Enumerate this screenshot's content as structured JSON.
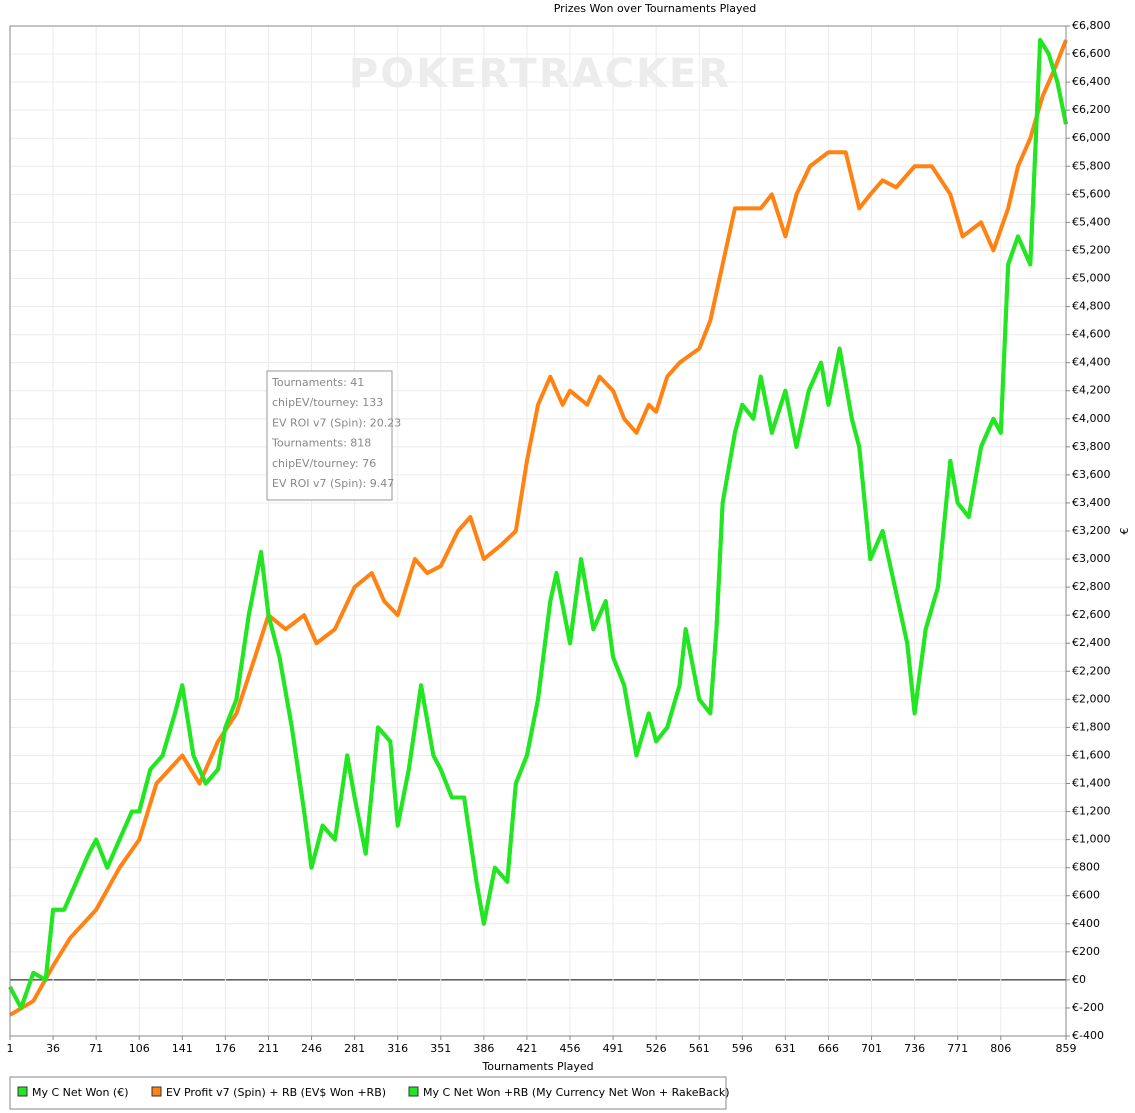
{
  "chart_data": {
    "type": "line",
    "title": "Prizes Won over Tournaments Played",
    "xlabel": "Tournaments Played",
    "ylabel": "€",
    "watermark": "POKERTRACKER",
    "annotations": [
      "Tournaments: 41",
      "chipEV/tourney: 133",
      "EV ROI v7 (Spin): 20.23",
      "Tournaments: 818",
      "chipEV/tourney: 76",
      "EV ROI v7 (Spin): 9.47"
    ],
    "xlim": [
      1,
      859
    ],
    "xticks": [
      1,
      36,
      71,
      106,
      141,
      176,
      211,
      246,
      281,
      316,
      351,
      386,
      421,
      456,
      491,
      526,
      561,
      596,
      631,
      666,
      701,
      736,
      771,
      806,
      859
    ],
    "ylim": [
      -400,
      6800
    ],
    "yticks": [
      {
        "value": -400,
        "label": "€-400"
      },
      {
        "value": -200,
        "label": "€-200"
      },
      {
        "value": 0,
        "label": "€0"
      },
      {
        "value": 200,
        "label": "€200"
      },
      {
        "value": 400,
        "label": "€400"
      },
      {
        "value": 600,
        "label": "€600"
      },
      {
        "value": 800,
        "label": "€800"
      },
      {
        "value": 1000,
        "label": "€1,000"
      },
      {
        "value": 1200,
        "label": "€1,200"
      },
      {
        "value": 1400,
        "label": "€1,400"
      },
      {
        "value": 1600,
        "label": "€1,600"
      },
      {
        "value": 1800,
        "label": "€1,800"
      },
      {
        "value": 2000,
        "label": "€2,000"
      },
      {
        "value": 2200,
        "label": "€2,200"
      },
      {
        "value": 2400,
        "label": "€2,400"
      },
      {
        "value": 2600,
        "label": "€2,600"
      },
      {
        "value": 2800,
        "label": "€2,800"
      },
      {
        "value": 3000,
        "label": "€3,000"
      },
      {
        "value": 3200,
        "label": "€3,200"
      },
      {
        "value": 3400,
        "label": "€3,400"
      },
      {
        "value": 3600,
        "label": "€3,600"
      },
      {
        "value": 3800,
        "label": "€3,800"
      },
      {
        "value": 4000,
        "label": "€4,000"
      },
      {
        "value": 4200,
        "label": "€4,200"
      },
      {
        "value": 4400,
        "label": "€4,400"
      },
      {
        "value": 4600,
        "label": "€4,600"
      },
      {
        "value": 4800,
        "label": "€4,800"
      },
      {
        "value": 5000,
        "label": "€5,000"
      },
      {
        "value": 5200,
        "label": "€5,200"
      },
      {
        "value": 5400,
        "label": "€5,400"
      },
      {
        "value": 5600,
        "label": "€5,600"
      },
      {
        "value": 5800,
        "label": "€5,800"
      },
      {
        "value": 6000,
        "label": "€6,000"
      },
      {
        "value": 6200,
        "label": "€6,200"
      },
      {
        "value": 6400,
        "label": "€6,400"
      },
      {
        "value": 6600,
        "label": "€6,600"
      },
      {
        "value": 6800,
        "label": "€6,800"
      }
    ],
    "grid": true,
    "series": [
      {
        "name": "My C Net Won (€)",
        "color": "#22e622",
        "x": [
          1,
          10,
          20,
          30,
          36,
          45,
          55,
          65,
          71,
          80,
          90,
          100,
          106,
          115,
          125,
          135,
          141,
          150,
          160,
          170,
          176,
          185,
          195,
          205,
          211,
          220,
          230,
          240,
          246,
          255,
          265,
          275,
          281,
          290,
          300,
          310,
          316,
          325,
          335,
          345,
          351,
          360,
          370,
          380,
          386,
          395,
          405,
          412,
          421,
          430,
          440,
          445,
          456,
          465,
          475,
          485,
          491,
          500,
          510,
          520,
          526,
          535,
          545,
          550,
          561,
          570,
          575,
          580,
          590,
          596,
          605,
          611,
          620,
          631,
          640,
          650,
          660,
          666,
          675,
          685,
          691,
          700,
          710,
          720,
          730,
          736,
          745,
          755,
          765,
          771,
          780,
          790,
          800,
          806,
          812,
          820,
          830,
          838,
          845,
          852,
          859
        ],
        "values": [
          -50,
          -200,
          50,
          0,
          500,
          500,
          700,
          900,
          1000,
          800,
          1000,
          1200,
          1200,
          1500,
          1600,
          1900,
          2100,
          1600,
          1400,
          1500,
          1800,
          2000,
          2600,
          3050,
          2600,
          2300,
          1800,
          1200,
          800,
          1100,
          1000,
          1600,
          1300,
          900,
          1800,
          1700,
          1100,
          1500,
          2100,
          1600,
          1500,
          1300,
          1300,
          700,
          400,
          800,
          700,
          1400,
          1600,
          2000,
          2700,
          2900,
          2400,
          3000,
          2500,
          2700,
          2300,
          2100,
          1600,
          1900,
          1700,
          1800,
          2100,
          2500,
          2000,
          1900,
          2500,
          3400,
          3900,
          4100,
          4000,
          4300,
          3900,
          4200,
          3800,
          4200,
          4400,
          4100,
          4500,
          4000,
          3800,
          3000,
          3200,
          2800,
          2400,
          1900,
          2500,
          2800,
          3700,
          3400,
          3300,
          3800,
          4000,
          3900,
          5100,
          5300,
          5100,
          6700,
          6600,
          6400,
          6100
        ]
      },
      {
        "name": "EV Profit v7 (Spin) + RB (EV$ Won +RB)",
        "color": "#ff8213",
        "x": [
          1,
          20,
          36,
          50,
          71,
          90,
          106,
          120,
          141,
          155,
          170,
          185,
          200,
          211,
          225,
          240,
          250,
          265,
          281,
          295,
          305,
          316,
          330,
          340,
          351,
          365,
          375,
          386,
          400,
          412,
          421,
          430,
          440,
          450,
          456,
          470,
          480,
          491,
          500,
          510,
          520,
          526,
          535,
          545,
          561,
          570,
          580,
          590,
          600,
          611,
          620,
          631,
          640,
          651,
          666,
          680,
          691,
          700,
          710,
          721,
          736,
          750,
          765,
          775,
          790,
          800,
          812,
          820,
          830,
          840,
          850,
          859
        ],
        "values": [
          -250,
          -150,
          100,
          300,
          500,
          800,
          1000,
          1400,
          1600,
          1400,
          1700,
          1900,
          2300,
          2600,
          2500,
          2600,
          2400,
          2500,
          2800,
          2900,
          2700,
          2600,
          3000,
          2900,
          2950,
          3200,
          3300,
          3000,
          3100,
          3200,
          3700,
          4100,
          4300,
          4100,
          4200,
          4100,
          4300,
          4200,
          4000,
          3900,
          4100,
          4050,
          4300,
          4400,
          4500,
          4700,
          5100,
          5500,
          5500,
          5500,
          5600,
          5300,
          5600,
          5800,
          5900,
          5900,
          5500,
          5600,
          5700,
          5650,
          5800,
          5800,
          5600,
          5300,
          5400,
          5200,
          5500,
          5800,
          6000,
          6300,
          6500,
          6700
        ]
      },
      {
        "name": "My C Net Won +RB (My Currency Net Won + RakeBack)",
        "color": "#22e622",
        "x": [
          1,
          10,
          20,
          30,
          36,
          45,
          55,
          65,
          71,
          80,
          90,
          100,
          106,
          115,
          125,
          135,
          141,
          150,
          160,
          170,
          176,
          185,
          195,
          205,
          211,
          220,
          230,
          240,
          246,
          255,
          265,
          275,
          281,
          290,
          300,
          310,
          316,
          325,
          335,
          345,
          351,
          360,
          370,
          380,
          386,
          395,
          405,
          412,
          421,
          430,
          440,
          445,
          456,
          465,
          475,
          485,
          491,
          500,
          510,
          520,
          526,
          535,
          545,
          550,
          561,
          570,
          575,
          580,
          590,
          596,
          605,
          611,
          620,
          631,
          640,
          650,
          660,
          666,
          675,
          685,
          691,
          700,
          710,
          720,
          730,
          736,
          745,
          755,
          765,
          771,
          780,
          790,
          800,
          806,
          812,
          820,
          830,
          838,
          845,
          852,
          859
        ],
        "values": [
          -50,
          -200,
          50,
          0,
          500,
          500,
          700,
          900,
          1000,
          800,
          1000,
          1200,
          1200,
          1500,
          1600,
          1900,
          2100,
          1600,
          1400,
          1500,
          1800,
          2000,
          2600,
          3050,
          2600,
          2300,
          1800,
          1200,
          800,
          1100,
          1000,
          1600,
          1300,
          900,
          1800,
          1700,
          1100,
          1500,
          2100,
          1600,
          1500,
          1300,
          1300,
          700,
          400,
          800,
          700,
          1400,
          1600,
          2000,
          2700,
          2900,
          2400,
          3000,
          2500,
          2700,
          2300,
          2100,
          1600,
          1900,
          1700,
          1800,
          2100,
          2500,
          2000,
          1900,
          2500,
          3400,
          3900,
          4100,
          4000,
          4300,
          3900,
          4200,
          3800,
          4200,
          4400,
          4100,
          4500,
          4000,
          3800,
          3000,
          3200,
          2800,
          2400,
          1900,
          2500,
          2800,
          3700,
          3400,
          3300,
          3800,
          4000,
          3900,
          5100,
          5300,
          5100,
          6700,
          6600,
          6400,
          6100
        ]
      }
    ]
  }
}
